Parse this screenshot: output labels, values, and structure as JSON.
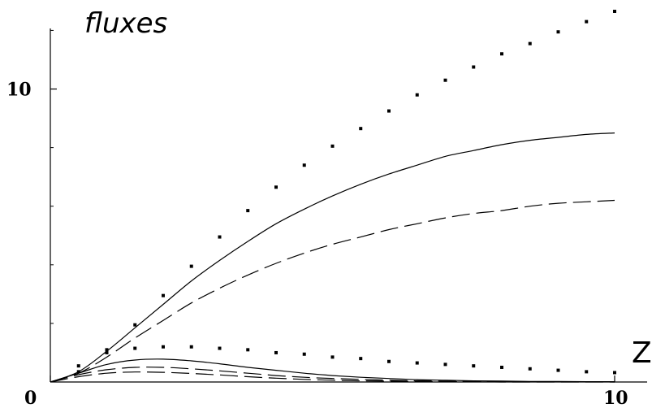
{
  "chart_data": {
    "type": "line",
    "title": "",
    "ylabel": "fluxes",
    "xlabel": "Z",
    "xlim": [
      0,
      10
    ],
    "ylim": [
      0,
      12.4
    ],
    "x_ticks": [
      {
        "value": 0,
        "label": "0"
      },
      {
        "value": 10,
        "label": "10"
      }
    ],
    "y_ticks": [
      {
        "value": 10,
        "label": "10"
      }
    ],
    "y_minor_ticks": [
      2,
      4,
      6,
      8,
      12
    ],
    "grid": false,
    "legend": "none",
    "x": [
      0,
      0.5,
      1,
      1.5,
      2,
      2.5,
      3,
      3.5,
      4,
      4.5,
      5,
      5.5,
      6,
      6.5,
      7,
      7.5,
      8,
      8.5,
      9,
      9.5,
      10
    ],
    "series": [
      {
        "style": "dotted",
        "color": "#000000",
        "values": [
          0,
          0.35,
          1.1,
          1.95,
          2.95,
          3.95,
          4.95,
          5.85,
          6.65,
          7.4,
          8.05,
          8.65,
          9.25,
          9.8,
          10.3,
          10.75,
          11.2,
          11.55,
          11.95,
          12.3,
          12.65
        ]
      },
      {
        "style": "solid",
        "color": "#000000",
        "values": [
          0,
          0.35,
          1.05,
          1.85,
          2.65,
          3.45,
          4.15,
          4.8,
          5.4,
          5.9,
          6.35,
          6.75,
          7.1,
          7.4,
          7.7,
          7.9,
          8.1,
          8.25,
          8.35,
          8.45,
          8.5
        ]
      },
      {
        "style": "dashed",
        "color": "#000000",
        "values": [
          0,
          0.3,
          0.85,
          1.5,
          2.1,
          2.7,
          3.2,
          3.65,
          4.05,
          4.4,
          4.7,
          4.95,
          5.2,
          5.4,
          5.6,
          5.75,
          5.85,
          6.0,
          6.1,
          6.15,
          6.2
        ]
      },
      {
        "style": "dotted",
        "color": "#000000",
        "values": [
          0,
          0.55,
          1.0,
          1.15,
          1.2,
          1.2,
          1.15,
          1.1,
          1.0,
          0.95,
          0.85,
          0.8,
          0.7,
          0.65,
          0.6,
          0.55,
          0.5,
          0.45,
          0.4,
          0.35,
          0.32
        ]
      },
      {
        "style": "solid",
        "color": "#000000",
        "values": [
          0,
          0.3,
          0.6,
          0.75,
          0.78,
          0.72,
          0.62,
          0.5,
          0.4,
          0.3,
          0.22,
          0.16,
          0.12,
          0.08,
          0.06,
          0.04,
          0.03,
          0.02,
          0.02,
          0.01,
          0.01
        ]
      },
      {
        "style": "dashed",
        "color": "#000000",
        "values": [
          0,
          0.25,
          0.42,
          0.5,
          0.5,
          0.45,
          0.38,
          0.3,
          0.22,
          0.16,
          0.12,
          0.09,
          0.06,
          0.04,
          0.03,
          0.02,
          0.02,
          0.01,
          0.01,
          0.01,
          0.0
        ]
      },
      {
        "style": "dashed",
        "color": "#000000",
        "values": [
          0,
          0.18,
          0.3,
          0.34,
          0.33,
          0.29,
          0.24,
          0.18,
          0.13,
          0.09,
          0.06,
          0.04,
          0.03,
          0.02,
          0.01,
          0.01,
          0.0,
          0.0,
          0.0,
          0.0,
          0.0
        ]
      }
    ]
  }
}
